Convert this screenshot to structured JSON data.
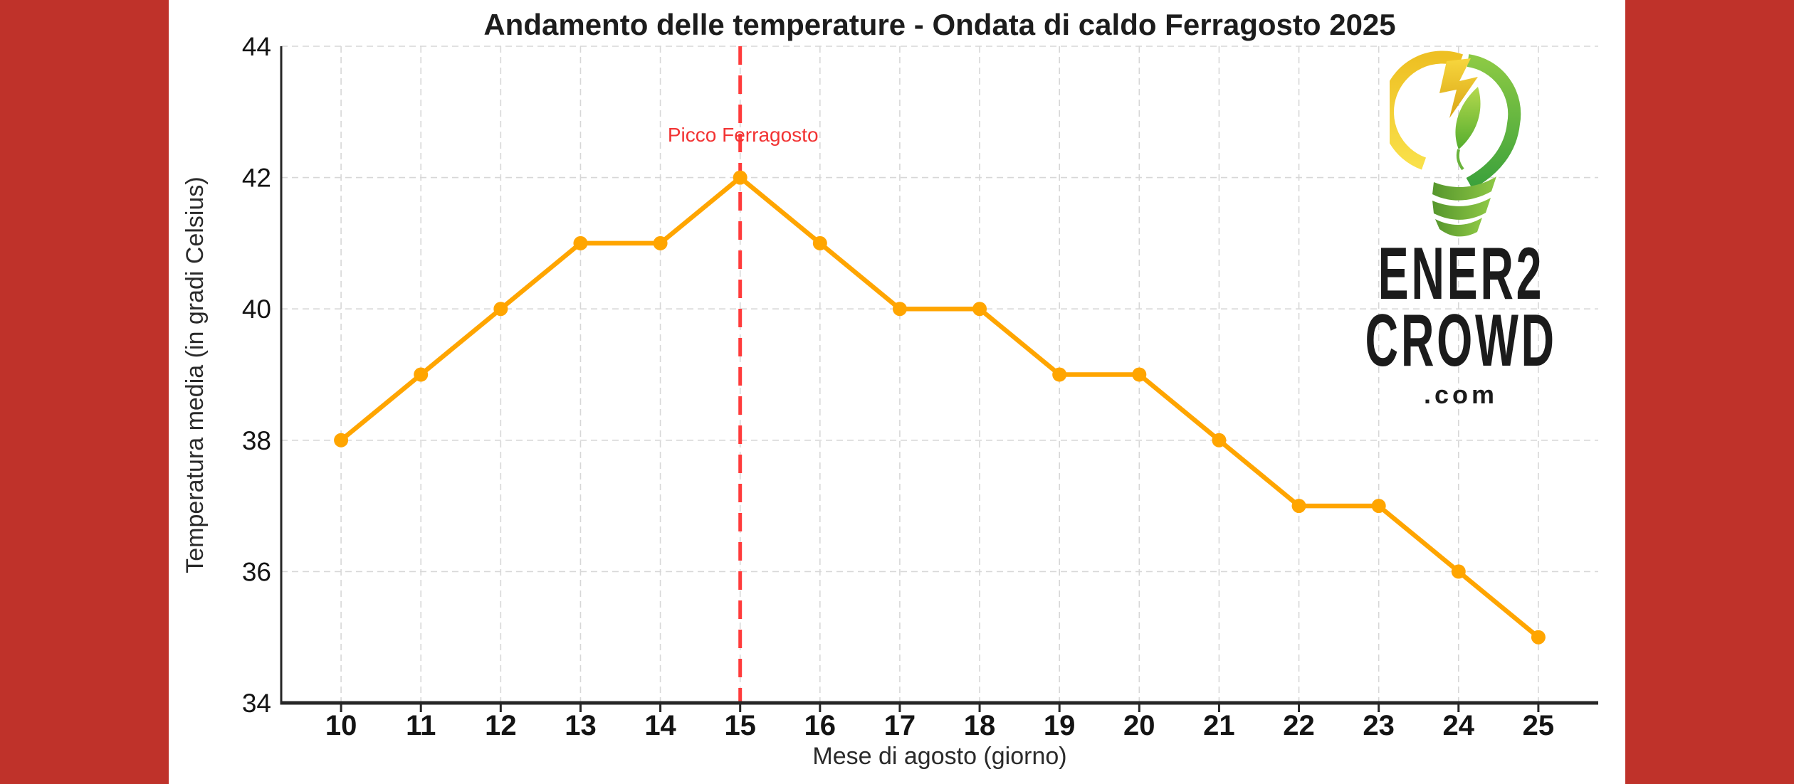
{
  "page": {
    "background": "#ffffff",
    "side_band_color": "#bf322a"
  },
  "chart_data": {
    "type": "line",
    "title": "Andamento delle temperature - Ondata di caldo Ferragosto 2025",
    "xlabel": "Mese di agosto (giorno)",
    "ylabel": "Temperatura media (in gradi Celsius)",
    "x": [
      10,
      11,
      12,
      13,
      14,
      15,
      16,
      17,
      18,
      19,
      20,
      21,
      22,
      23,
      24,
      25
    ],
    "y": [
      38,
      39,
      40,
      41,
      41,
      42,
      41,
      40,
      40,
      39,
      39,
      38,
      37,
      37,
      36,
      35
    ],
    "xticks": [
      10,
      11,
      12,
      13,
      14,
      15,
      16,
      17,
      18,
      19,
      20,
      21,
      22,
      23,
      24,
      25
    ],
    "yticks": [
      34,
      36,
      38,
      40,
      42,
      44
    ],
    "xlim": [
      9.25,
      25.75
    ],
    "ylim": [
      34,
      44
    ],
    "grid": true,
    "grid_style": "dashed",
    "legend": "none",
    "line_color": "#ffa500",
    "marker": "circle",
    "marker_color": "#ffa500",
    "annotation": {
      "text": "Picco Ferragosto",
      "x": 15,
      "y": 42.55,
      "color": "#f23333"
    },
    "vline": {
      "x": 15,
      "style": "dashed",
      "color": "#ff3b3b"
    }
  },
  "logo": {
    "line1": "ENER2",
    "line2": "CROWD",
    "line3": ".com",
    "text_color": "#1b1b1b",
    "bulb_yellow": "#f2c621",
    "bulb_green": "#4caf36"
  }
}
